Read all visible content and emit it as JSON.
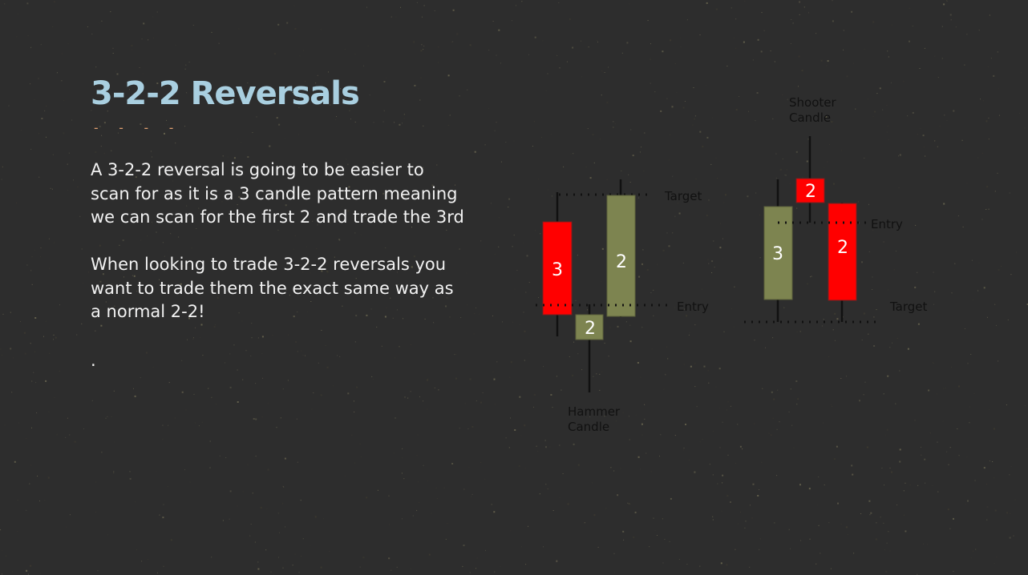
{
  "slide": {
    "title": "3-2-2 Reversals",
    "title_dashes": "- - - -",
    "paragraph_1_lines": [
      "A 3-2-2 reversal is going to be easier to",
      "scan for as it is a 3 candle pattern meaning",
      "we can scan for the first 2 and trade the 3rd"
    ],
    "paragraph_2_lines": [
      "When looking to trade 3-2-2 reversals you",
      "want to trade them the exact same way as",
      "a normal 2-2!"
    ],
    "trailing_dot": "."
  },
  "diagrams": {
    "bullish": {
      "target_label": "Target",
      "entry_label": "Entry",
      "candle_label_line1": "Hammer",
      "candle_label_line2": "Candle",
      "candle_1": "3",
      "candle_2": "2",
      "candle_3": "2"
    },
    "bearish": {
      "candle_label_line1": "Shooter",
      "candle_label_line2": "Candle",
      "entry_label": "Entry",
      "target_label": "Target",
      "candle_1": "3",
      "candle_2": "2",
      "candle_3": "2"
    }
  },
  "colors": {
    "background": "#2d2d2d",
    "title": "#a9cfe0",
    "accent_dashes": "#e0a070",
    "bear_candle": "#ff0000",
    "bull_candle": "#7d8450",
    "text": "#f2f2f2"
  }
}
